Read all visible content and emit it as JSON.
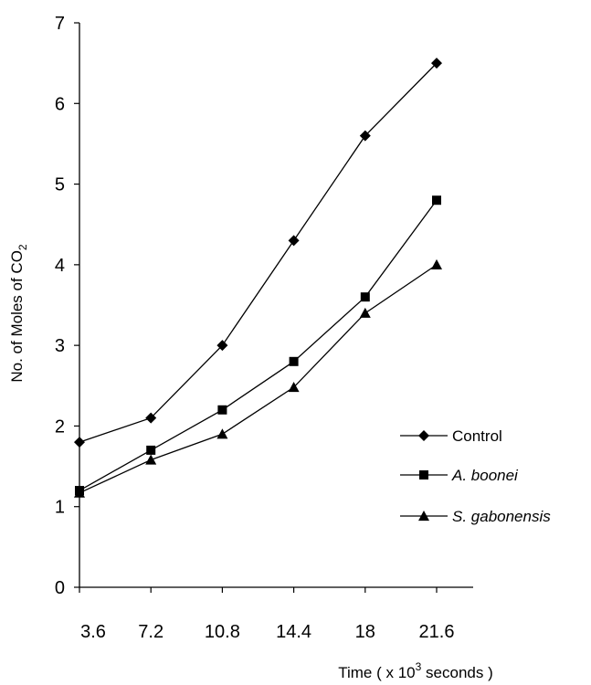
{
  "chart_data": {
    "type": "line",
    "x": [
      "3.6",
      "7.2",
      "10.8",
      "14.4",
      "18",
      "21.6"
    ],
    "xlabel": {
      "prefix": "Time ( x 10",
      "sup": "3",
      "suffix": " seconds )"
    },
    "ylabel": {
      "main": "No. of Moles of CO",
      "sub": "2"
    },
    "ylim": [
      0,
      7
    ],
    "yticks": [
      "0",
      "1",
      "2",
      "3",
      "4",
      "5",
      "6",
      "7"
    ],
    "grid": false,
    "legend_position": "right",
    "series": [
      {
        "name": "Control",
        "marker": "diamond",
        "italic": false,
        "values": [
          1.8,
          2.1,
          3.0,
          4.3,
          5.6,
          6.5
        ]
      },
      {
        "name": "A. boonei",
        "marker": "square",
        "italic": true,
        "values": [
          1.2,
          1.7,
          2.2,
          2.8,
          3.6,
          4.8
        ]
      },
      {
        "name": "S. gabonensis",
        "marker": "triangle",
        "italic": true,
        "values": [
          1.17,
          1.58,
          1.9,
          2.48,
          3.4,
          4.0
        ]
      }
    ],
    "colors": {
      "line": "#000000",
      "marker": "#000000"
    }
  }
}
